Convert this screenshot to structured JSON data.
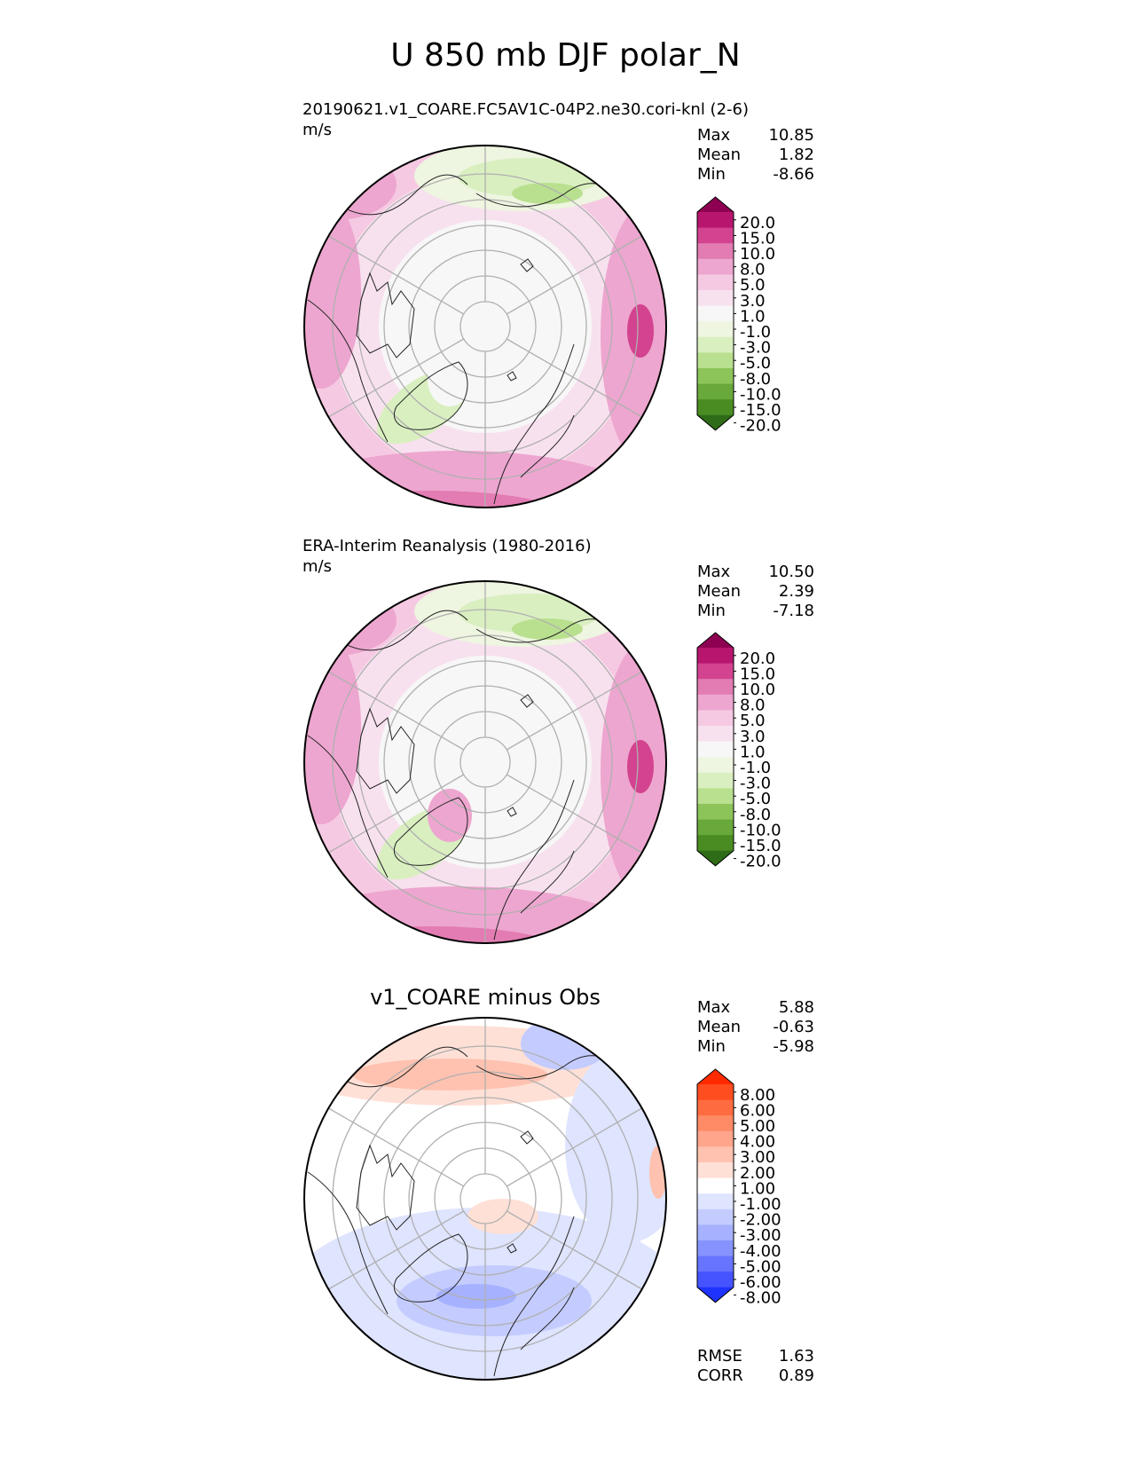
{
  "title": "U 850 mb DJF polar_N",
  "panels": [
    {
      "id": "test",
      "title": "20190621.v1_COARE.FC5AV1C-04P2.ne30.cori-knl (2-6)",
      "units": "m/s",
      "stats": [
        {
          "label": "Max",
          "value": "10.85"
        },
        {
          "label": "Mean",
          "value": "1.82"
        },
        {
          "label": "Min",
          "value": "-8.66"
        }
      ],
      "colorbar": {
        "levels": [
          "20.0",
          "15.0",
          "10.0",
          "8.0",
          "5.0",
          "3.0",
          "1.0",
          "-1.0",
          "-3.0",
          "-5.0",
          "-8.0",
          "-10.0",
          "-15.0",
          "-20.0"
        ],
        "colors": [
          "#8e0152",
          "#b8156f",
          "#d3438f",
          "#e27cb3",
          "#eda6cf",
          "#f6c9e2",
          "#f8e1ef",
          "#f7f7f7",
          "#eef5e0",
          "#d9efc0",
          "#b9e08f",
          "#8cc45a",
          "#69a83a",
          "#4a8c22",
          "#2f6c18"
        ]
      }
    },
    {
      "id": "reference",
      "title": "ERA-Interim Reanalysis (1980-2016)",
      "units": "m/s",
      "stats": [
        {
          "label": "Max",
          "value": "10.50"
        },
        {
          "label": "Mean",
          "value": "2.39"
        },
        {
          "label": "Min",
          "value": "-7.18"
        }
      ],
      "colorbar": {
        "levels": [
          "20.0",
          "15.0",
          "10.0",
          "8.0",
          "5.0",
          "3.0",
          "1.0",
          "-1.0",
          "-3.0",
          "-5.0",
          "-8.0",
          "-10.0",
          "-15.0",
          "-20.0"
        ],
        "colors": [
          "#8e0152",
          "#b8156f",
          "#d3438f",
          "#e27cb3",
          "#eda6cf",
          "#f6c9e2",
          "#f8e1ef",
          "#f7f7f7",
          "#eef5e0",
          "#d9efc0",
          "#b9e08f",
          "#8cc45a",
          "#69a83a",
          "#4a8c22",
          "#2f6c18"
        ]
      }
    },
    {
      "id": "difference",
      "title": "v1_COARE minus Obs",
      "stats": [
        {
          "label": "Max",
          "value": "5.88"
        },
        {
          "label": "Mean",
          "value": "-0.63"
        },
        {
          "label": "Min",
          "value": "-5.98"
        }
      ],
      "extra_stats": [
        {
          "label": "RMSE",
          "value": "1.63"
        },
        {
          "label": "CORR",
          "value": "0.89"
        }
      ],
      "colorbar": {
        "levels": [
          "8.00",
          "6.00",
          "5.00",
          "4.00",
          "3.00",
          "2.00",
          "1.00",
          "-1.00",
          "-2.00",
          "-3.00",
          "-4.00",
          "-5.00",
          "-6.00",
          "-8.00"
        ],
        "colors": [
          "#ff2a00",
          "#ff4d1f",
          "#ff6b40",
          "#ff8a66",
          "#ffa58c",
          "#ffc2b0",
          "#ffe0d6",
          "#ffffff",
          "#dfe4ff",
          "#c4ccff",
          "#a6b2ff",
          "#8693ff",
          "#6674ff",
          "#4554ff",
          "#1f33ff"
        ]
      }
    }
  ]
}
